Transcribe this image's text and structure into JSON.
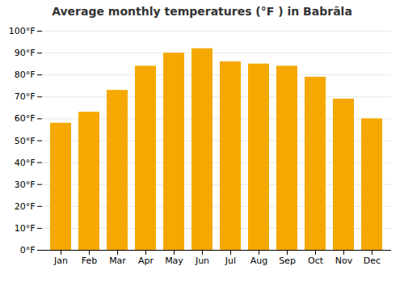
{
  "chart_data": {
    "type": "bar",
    "title": "Average monthly temperatures (°F ) in Babrāla",
    "categories": [
      "Jan",
      "Feb",
      "Mar",
      "Apr",
      "May",
      "Jun",
      "Jul",
      "Aug",
      "Sep",
      "Oct",
      "Nov",
      "Dec"
    ],
    "values": [
      58,
      63,
      73,
      84,
      90,
      92,
      86,
      85,
      84,
      79,
      69,
      60
    ],
    "color": "#F5A800",
    "ylim": [
      0,
      100
    ],
    "yticks": [
      {
        "value": 0,
        "label": "0°F"
      },
      {
        "value": 10,
        "label": "10°F"
      },
      {
        "value": 20,
        "label": "20°F"
      },
      {
        "value": 30,
        "label": "30°F"
      },
      {
        "value": 40,
        "label": "40°F"
      },
      {
        "value": 50,
        "label": "50°F"
      },
      {
        "value": 60,
        "label": "60°F"
      },
      {
        "value": 70,
        "label": "70°F"
      },
      {
        "value": 80,
        "label": "80°F"
      },
      {
        "value": 90,
        "label": "90°F"
      },
      {
        "value": 100,
        "label": "100°F"
      }
    ],
    "grid": true
  }
}
